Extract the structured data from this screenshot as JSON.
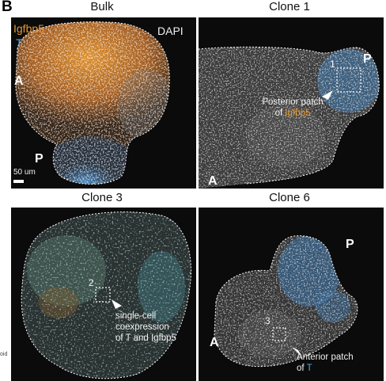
{
  "figure": {
    "panel_letter": "B",
    "edge_fragment": "oid"
  },
  "panels": {
    "bulk": {
      "title": "Bulk",
      "legend_gene1": "Igfbp5",
      "legend_gene2": "T",
      "stain_label": "DAPI",
      "axis_a": "A",
      "axis_p": "P",
      "scale_bar": "50 um"
    },
    "clone1": {
      "title": "Clone 1",
      "roi_number": "1",
      "axis_p": "P",
      "axis_a": "A",
      "callout_line1": "Posterior patch",
      "callout_of": "of",
      "callout_gene": "Igfbp5"
    },
    "clone3": {
      "title": "Clone 3",
      "roi_number": "2",
      "callout_line1": "single-cell",
      "callout_line2": "coexpression",
      "callout_line3": "of T and Igfbp5"
    },
    "clone6": {
      "title": "Clone 6",
      "axis_p": "P",
      "axis_a": "A",
      "roi_number": "3",
      "callout_line1": "Anterior patch",
      "callout_of": "of",
      "callout_gene": "T"
    }
  },
  "colors": {
    "igfbp5": "#e8962f",
    "t": "#58a6e0",
    "dapi": "#d9d9d9",
    "background": "#0b0b0b"
  }
}
